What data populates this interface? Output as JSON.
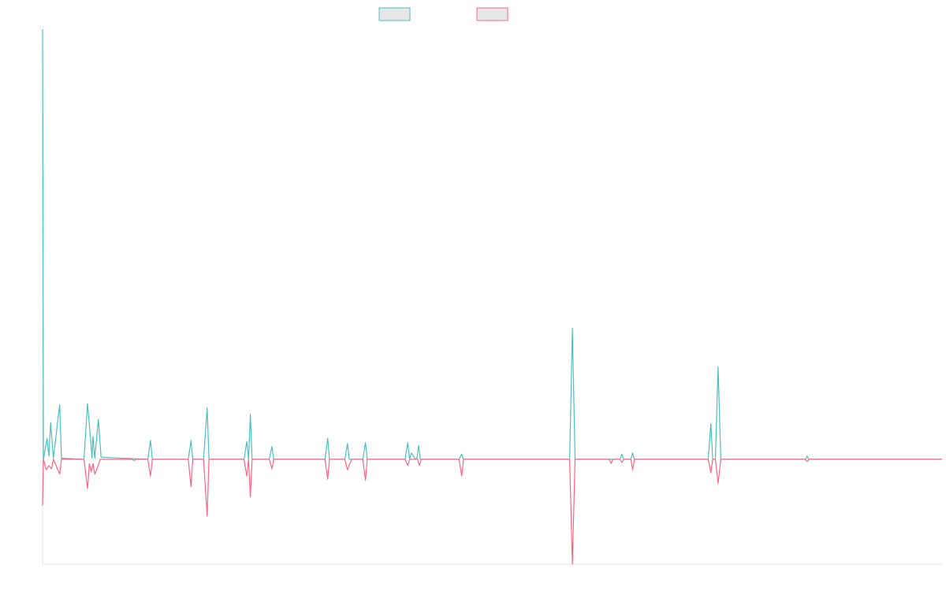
{
  "chart_data": {
    "type": "line",
    "title": "",
    "xlabel": "",
    "ylabel": "",
    "legend": {
      "placement": "top-center",
      "entries": [
        "",
        ""
      ]
    },
    "grid": false,
    "xlim": [
      0,
      1000
    ],
    "ylim": [
      -100,
      410
    ],
    "colors": {
      "series_a": "#4bc0c0",
      "series_b": "#ff6384",
      "legend_fill": "#e6e6e6",
      "axis": "#e0e0e0"
    },
    "series": [
      {
        "color": "#4bc0c0",
        "points": [
          [
            0,
            410
          ],
          [
            1,
            0
          ],
          [
            5,
            20
          ],
          [
            7,
            3
          ],
          [
            9,
            35
          ],
          [
            12,
            1
          ],
          [
            19,
            52
          ],
          [
            21,
            1
          ],
          [
            46,
            0
          ],
          [
            50,
            53
          ],
          [
            53,
            23
          ],
          [
            55,
            1
          ],
          [
            56,
            22
          ],
          [
            58,
            1
          ],
          [
            62,
            38
          ],
          [
            65,
            2
          ],
          [
            117,
            0
          ],
          [
            120,
            18
          ],
          [
            122,
            0
          ],
          [
            162,
            0
          ],
          [
            165,
            18
          ],
          [
            167,
            0
          ],
          [
            179,
            0
          ],
          [
            183,
            49
          ],
          [
            185,
            0
          ],
          [
            224,
            0
          ],
          [
            227,
            17
          ],
          [
            229,
            0
          ],
          [
            231,
            43
          ],
          [
            233,
            0
          ],
          [
            252,
            0
          ],
          [
            255,
            12
          ],
          [
            257,
            0
          ],
          [
            314,
            0
          ],
          [
            317,
            20
          ],
          [
            319,
            0
          ],
          [
            336,
            0
          ],
          [
            339,
            15
          ],
          [
            341,
            0
          ],
          [
            356,
            0
          ],
          [
            359,
            16
          ],
          [
            361,
            0
          ],
          [
            403,
            0
          ],
          [
            406,
            16
          ],
          [
            408,
            0
          ],
          [
            410,
            6
          ],
          [
            414,
            1
          ],
          [
            416,
            0
          ],
          [
            418,
            13
          ],
          [
            420,
            0
          ],
          [
            463,
            0
          ],
          [
            466,
            5
          ],
          [
            468,
            0
          ],
          [
            586,
            0
          ],
          [
            589,
            125
          ],
          [
            592,
            0
          ],
          [
            642,
            0
          ],
          [
            644,
            5
          ],
          [
            646,
            0
          ],
          [
            654,
            0
          ],
          [
            656,
            6
          ],
          [
            658,
            0
          ],
          [
            740,
            0
          ],
          [
            743,
            34
          ],
          [
            745,
            0
          ],
          [
            748,
            0
          ],
          [
            751,
            88
          ],
          [
            754,
            0
          ],
          [
            848,
            0
          ],
          [
            850,
            3
          ],
          [
            852,
            0
          ],
          [
            1000,
            0
          ]
        ]
      },
      {
        "color": "#ff6384",
        "points": [
          [
            0,
            -44
          ],
          [
            1,
            0
          ],
          [
            4,
            -10
          ],
          [
            7,
            -6
          ],
          [
            10,
            -9
          ],
          [
            12,
            0
          ],
          [
            19,
            -14
          ],
          [
            21,
            0
          ],
          [
            46,
            0
          ],
          [
            50,
            -28
          ],
          [
            52,
            -4
          ],
          [
            54,
            -12
          ],
          [
            56,
            -4
          ],
          [
            58,
            -14
          ],
          [
            61,
            -8
          ],
          [
            64,
            0
          ],
          [
            99,
            0
          ],
          [
            102,
            -1
          ],
          [
            104,
            0
          ],
          [
            117,
            0
          ],
          [
            120,
            -16
          ],
          [
            122,
            0
          ],
          [
            162,
            0
          ],
          [
            165,
            -26
          ],
          [
            167,
            0
          ],
          [
            179,
            0
          ],
          [
            183,
            -54
          ],
          [
            185,
            0
          ],
          [
            224,
            0
          ],
          [
            227,
            -16
          ],
          [
            229,
            0
          ],
          [
            231,
            -36
          ],
          [
            233,
            0
          ],
          [
            252,
            0
          ],
          [
            255,
            -9
          ],
          [
            257,
            0
          ],
          [
            314,
            0
          ],
          [
            317,
            -19
          ],
          [
            319,
            0
          ],
          [
            336,
            0
          ],
          [
            339,
            -10
          ],
          [
            341,
            -5
          ],
          [
            344,
            0
          ],
          [
            356,
            0
          ],
          [
            359,
            -20
          ],
          [
            361,
            0
          ],
          [
            403,
            0
          ],
          [
            406,
            -6
          ],
          [
            408,
            0
          ],
          [
            417,
            0
          ],
          [
            419,
            -6
          ],
          [
            421,
            0
          ],
          [
            463,
            0
          ],
          [
            466,
            -16
          ],
          [
            468,
            0
          ],
          [
            586,
            0
          ],
          [
            589,
            -100
          ],
          [
            592,
            0
          ],
          [
            630,
            0
          ],
          [
            632,
            -4
          ],
          [
            634,
            0
          ],
          [
            642,
            0
          ],
          [
            644,
            -3
          ],
          [
            646,
            0
          ],
          [
            654,
            0
          ],
          [
            656,
            -10
          ],
          [
            658,
            0
          ],
          [
            740,
            0
          ],
          [
            743,
            -13
          ],
          [
            745,
            0
          ],
          [
            748,
            0
          ],
          [
            751,
            -23
          ],
          [
            754,
            0
          ],
          [
            848,
            0
          ],
          [
            850,
            -2
          ],
          [
            852,
            0
          ],
          [
            1000,
            0
          ]
        ]
      }
    ]
  }
}
